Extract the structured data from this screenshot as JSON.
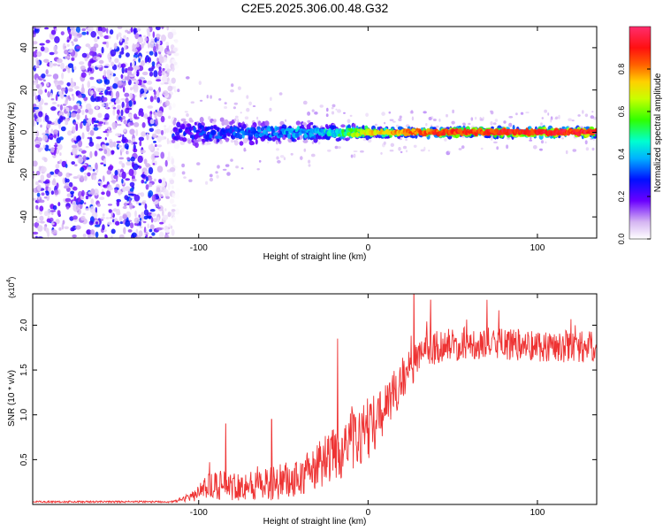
{
  "figure_title": "C2E5.2025.306.00.48.G32",
  "chart_data": [
    {
      "type": "heatmap",
      "title": "C2E5.2025.306.00.48.G32",
      "xlabel": "Height of straight line (km)",
      "ylabel": "Frequency (Hz)",
      "xlim": [
        -198,
        135
      ],
      "ylim": [
        -50,
        50
      ],
      "x_ticks": [
        -100,
        0,
        100
      ],
      "x_tick_labels": [
        "-100",
        "0",
        "100"
      ],
      "y_ticks": [
        -40,
        -20,
        0,
        20,
        40
      ],
      "y_tick_labels": [
        "-40",
        "-20",
        "0",
        "20",
        "40"
      ],
      "colorbar": {
        "label": "Normalized spectral amplitude",
        "range": [
          0,
          1
        ],
        "ticks": [
          0.0,
          0.2,
          0.4,
          0.6,
          0.8
        ],
        "tick_labels": [
          "0.0",
          "0.2",
          "0.4",
          "0.6",
          "0.8"
        ],
        "colormap": "rainbow (purple-white to red-magenta)"
      },
      "features": {
        "noise_region_x": [
          -198,
          -112
        ],
        "signal_line_frequency_hz": 0,
        "signal_line_x": [
          -115,
          135
        ],
        "signal_amplitude_trend": [
          {
            "x": -110,
            "amp": 0.25
          },
          {
            "x": -60,
            "amp": 0.35
          },
          {
            "x": -20,
            "amp": 0.45
          },
          {
            "x": 0,
            "amp": 0.75
          },
          {
            "x": 40,
            "amp": 0.9
          },
          {
            "x": 100,
            "amp": 0.95
          },
          {
            "x": 135,
            "amp": 0.95
          }
        ]
      }
    },
    {
      "type": "line",
      "xlabel": "Height of straight line (km)",
      "ylabel": "SNR (10 * v/v)",
      "y_scale_label": "(x10",
      "y_scale_exponent": "4",
      "xlim": [
        -198,
        135
      ],
      "ylim": [
        0,
        2.35
      ],
      "x_ticks": [
        -100,
        0,
        100
      ],
      "x_tick_labels": [
        "-100",
        "0",
        "100"
      ],
      "y_ticks": [
        0.5,
        1.0,
        1.5,
        2.0
      ],
      "y_tick_labels": [
        "0.5",
        "1.0",
        "1.5",
        "2.0"
      ],
      "series": [
        {
          "name": "SNR",
          "color": "#ee3333",
          "envelope": [
            {
              "x": -198,
              "mean": 0.03,
              "spread": 0.01
            },
            {
              "x": -115,
              "mean": 0.03,
              "spread": 0.01
            },
            {
              "x": -105,
              "mean": 0.08,
              "spread": 0.05
            },
            {
              "x": -95,
              "mean": 0.2,
              "spread": 0.15
            },
            {
              "x": -60,
              "mean": 0.22,
              "spread": 0.18
            },
            {
              "x": -40,
              "mean": 0.3,
              "spread": 0.22
            },
            {
              "x": -20,
              "mean": 0.55,
              "spread": 0.32
            },
            {
              "x": 0,
              "mean": 0.85,
              "spread": 0.35
            },
            {
              "x": 10,
              "mean": 1.05,
              "spread": 0.28
            },
            {
              "x": 20,
              "mean": 1.4,
              "spread": 0.25
            },
            {
              "x": 35,
              "mean": 1.75,
              "spread": 0.2
            },
            {
              "x": 60,
              "mean": 1.8,
              "spread": 0.18
            },
            {
              "x": 135,
              "mean": 1.75,
              "spread": 0.18
            }
          ],
          "peaks": [
            {
              "x": -84,
              "y": 0.9
            },
            {
              "x": -57,
              "y": 0.95
            },
            {
              "x": -18,
              "y": 1.85
            },
            {
              "x": 27,
              "y": 2.35
            },
            {
              "x": 37,
              "y": 2.28
            }
          ]
        }
      ]
    }
  ]
}
